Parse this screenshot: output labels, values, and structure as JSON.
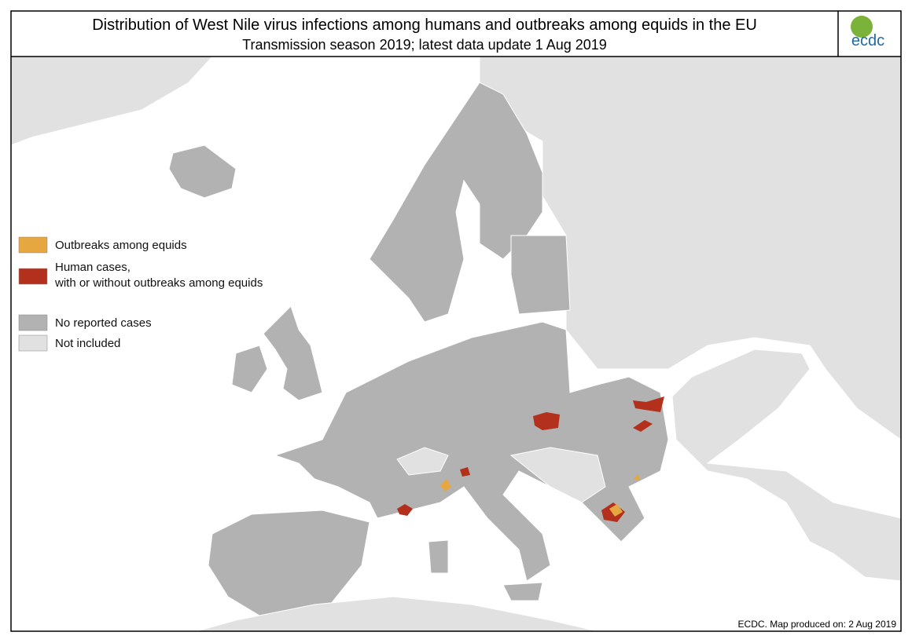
{
  "header": {
    "title": "Distribution of West Nile virus infections among humans and outbreaks among equids in the EU",
    "subtitle": "Transmission season 2019; latest data update  1 Aug 2019",
    "logo": "ecdc"
  },
  "legend": [
    {
      "label": "Outbreaks among equids",
      "color": "#e6a640"
    },
    {
      "label": "Human cases,\nwith or without outbreaks among equids",
      "color": "#b3301c"
    },
    {
      "label": "No reported cases",
      "color": "#b2b2b2"
    },
    {
      "label": "Not included",
      "color": "#e1e1e1"
    }
  ],
  "footer": "ECDC. Map produced on: 2 Aug 2019"
}
